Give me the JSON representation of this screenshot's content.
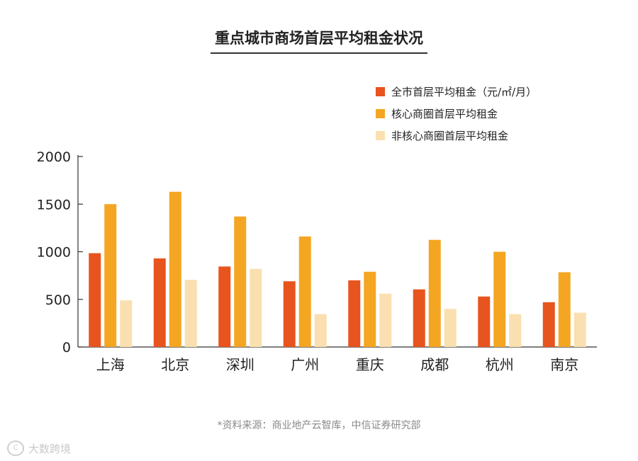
{
  "chart_data": {
    "type": "bar",
    "title": "重点城市商场首层平均租金状况",
    "categories": [
      "上海",
      "北京",
      "深圳",
      "广州",
      "重庆",
      "成都",
      "杭州",
      "南京"
    ],
    "series": [
      {
        "name": "全市首层平均租金（元/㎡/月）",
        "color": "#e8541e",
        "values": [
          985,
          930,
          845,
          690,
          700,
          605,
          530,
          470
        ]
      },
      {
        "name": "核心商圈首层平均租金",
        "color": "#f4a622",
        "values": [
          1500,
          1630,
          1370,
          1160,
          790,
          1125,
          1000,
          785
        ]
      },
      {
        "name": "非核心商圈首层平均租金",
        "color": "#fae0b0",
        "values": [
          490,
          705,
          820,
          345,
          560,
          400,
          345,
          360
        ]
      }
    ],
    "ylim": [
      0,
      2000
    ],
    "yticks": [
      0,
      500,
      1000,
      1500,
      2000
    ],
    "grid": false,
    "legend_position": "top-right"
  },
  "source_note": "*资料来源：商业地产云智库，中信证券研究部",
  "watermark": "大数跨境"
}
